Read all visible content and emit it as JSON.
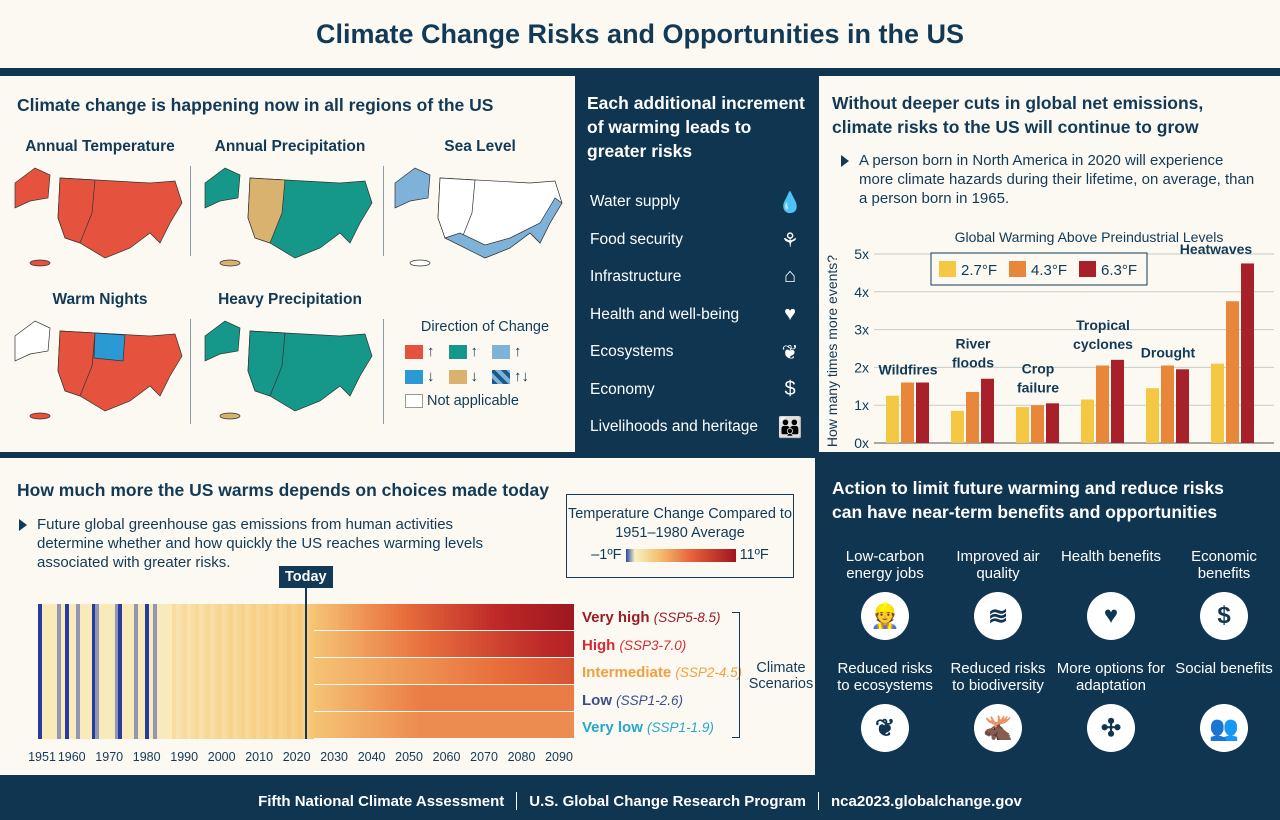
{
  "title": "Climate Change Risks and Opportunities in the US",
  "now": {
    "heading": "Climate change is happening now in all regions of the US",
    "maps": [
      "Annual Temperature",
      "Annual Precipitation",
      "Sea Level",
      "Warm Nights",
      "Heavy Precipitation"
    ],
    "legend": {
      "title": "Direction of Change",
      "not_applicable": "Not applicable",
      "up": "↑",
      "down": "↓",
      "both": "↑↓"
    },
    "colors": {
      "red": "#e5533f",
      "teal": "#15978a",
      "blue_light": "#7fb2d8",
      "blue": "#2b9ad4",
      "tan": "#d8b26e"
    }
  },
  "risks": {
    "heading": "Each additional increment of warming leads to greater risks",
    "items": [
      {
        "label": "Water supply",
        "icon": "water-drop-icon",
        "glyph": "💧"
      },
      {
        "label": "Food security",
        "icon": "plant-sun-icon",
        "glyph": "⚘"
      },
      {
        "label": "Infrastructure",
        "icon": "house-icon",
        "glyph": "⌂"
      },
      {
        "label": "Health and well-being",
        "icon": "heart-pulse-icon",
        "glyph": "♥"
      },
      {
        "label": "Ecosystems",
        "icon": "sprout-icon",
        "glyph": "❦"
      },
      {
        "label": "Economy",
        "icon": "dollar-icon",
        "glyph": "$"
      },
      {
        "label": "Livelihoods and heritage",
        "icon": "family-icon",
        "glyph": "👪"
      }
    ]
  },
  "grow": {
    "heading": "Without deeper cuts in global net emissions, climate risks to the US will continue to grow",
    "bullet": "A person born in North America in 2020 will experience more climate hazards during their lifetime, on average, than a person born in 1965."
  },
  "chart_data": {
    "type": "bar",
    "title": "Global Warming Above Preindustrial Levels",
    "ylabel": "How many times more events?",
    "ylim": [
      0,
      5
    ],
    "yticks": [
      "0x",
      "1x",
      "2x",
      "3x",
      "4x",
      "5x"
    ],
    "grid": true,
    "legend": "top",
    "categories": [
      "Wildfires",
      "River floods",
      "Crop failure",
      "Tropical cyclones",
      "Drought",
      "Heatwaves"
    ],
    "series": [
      {
        "name": "2.7°F",
        "color": "#f4c842",
        "values": [
          1.25,
          0.85,
          0.95,
          1.15,
          1.45,
          2.1
        ]
      },
      {
        "name": "4.3°F",
        "color": "#e8873a",
        "values": [
          1.6,
          1.35,
          1.0,
          2.05,
          2.05,
          3.75
        ]
      },
      {
        "name": "6.3°F",
        "color": "#a8202a",
        "values": [
          1.6,
          1.7,
          1.05,
          2.2,
          1.95,
          4.75
        ]
      }
    ]
  },
  "choices": {
    "heading": "How much more the US warms depends on choices made today",
    "bullet": "Future global greenhouse gas emissions from human activities determine whether and how quickly the US reaches warming levels associated with greater risks.",
    "today": "Today",
    "scale": {
      "title": "Temperature Change Compared to 1951–1980 Average",
      "min": "–1ºF",
      "max": "11ºF"
    },
    "years": [
      "1951",
      "1960",
      "1970",
      "1980",
      "1990",
      "2000",
      "2010",
      "2020",
      "2030",
      "2040",
      "2050",
      "2060",
      "2070",
      "2080",
      "2090"
    ],
    "scenarios": [
      {
        "name": "Very high",
        "code": "(SSP5-8.5)",
        "color": "#9c1c26"
      },
      {
        "name": "High",
        "code": "(SSP3-7.0)",
        "color": "#d42b35"
      },
      {
        "name": "Intermediate",
        "code": "(SSP2-4.5)",
        "color": "#f0a040"
      },
      {
        "name": "Low",
        "code": "(SSP1-2.6)",
        "color": "#3a4f8c"
      },
      {
        "name": "Very low",
        "code": "(SSP1-1.9)",
        "color": "#27a6cf"
      }
    ],
    "bracket_label": "Climate Scenarios"
  },
  "benefits": {
    "heading": "Action to limit future warming and reduce risks can have near-term benefits and opportunities",
    "items": [
      {
        "label": "Low-carbon energy jobs",
        "icon": "worker-icon",
        "glyph": "👷"
      },
      {
        "label": "Improved air quality",
        "icon": "wind-icon",
        "glyph": "≋"
      },
      {
        "label": "Health benefits",
        "icon": "heart-icon",
        "glyph": "♥"
      },
      {
        "label": "Economic benefits",
        "icon": "dollar-icon",
        "glyph": "$"
      },
      {
        "label": "Reduced risks to ecosystems",
        "icon": "sprout-icon",
        "glyph": "❦"
      },
      {
        "label": "Reduced risks to biodiversity",
        "icon": "moose-icon",
        "glyph": "🫎"
      },
      {
        "label": "More options for adaptation",
        "icon": "puzzle-icon",
        "glyph": "✣"
      },
      {
        "label": "Social benefits",
        "icon": "people-icon",
        "glyph": "👥"
      }
    ]
  },
  "footer": [
    "Fifth National Climate Assessment",
    "U.S. Global Change Research Program",
    "nca2023.globalchange.gov"
  ]
}
